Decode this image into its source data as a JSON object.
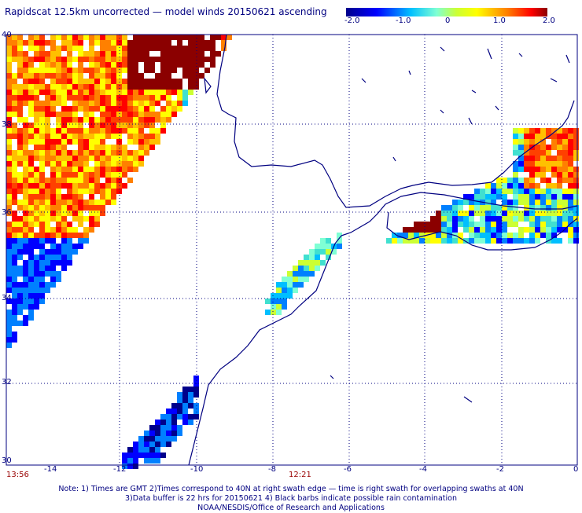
{
  "title": "Rapidscat 12.5km uncorrected — model winds 20150621 ascending",
  "colorbar": {
    "ticks": [
      "-2.0",
      "-1.0",
      "0",
      "1.0",
      "2.0"
    ],
    "range": [
      -2.0,
      2.0
    ]
  },
  "axes": {
    "lat_labels": [
      "40",
      "38",
      "36",
      "34",
      "32",
      "30"
    ],
    "lon_labels": [
      "-14",
      "-12",
      "-10",
      "-8",
      "-6",
      "-4",
      "-2",
      "0"
    ]
  },
  "times": {
    "left": "13:56",
    "center": "12:21"
  },
  "note": {
    "line1": "Note: 1) Times are GMT 2)Times correspond to 40N at right swath edge — time is right swath for overlapping swaths at 40N",
    "line2": "3)Data buffer is 22 hrs for 20150621 4) Black barbs indicate possible rain contamination",
    "line3": "NOAA/NESDIS/Office of Research and Applications"
  }
}
